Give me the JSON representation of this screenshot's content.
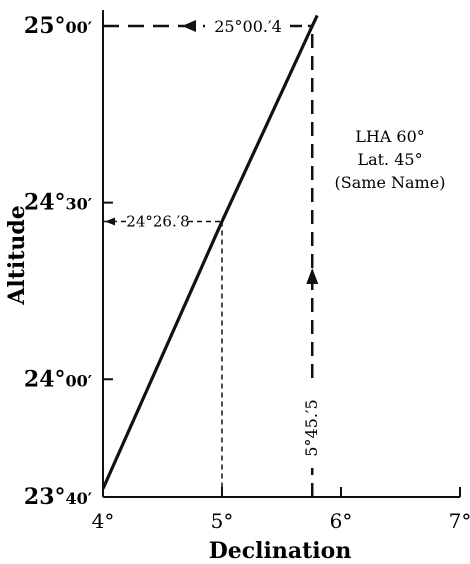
{
  "chart_data": {
    "type": "line",
    "xlabel": "Declination",
    "ylabel": "Altitude",
    "xlim": [
      4,
      7
    ],
    "ylim": [
      23.6667,
      25.0
    ],
    "x_ticks": [
      {
        "value": 4,
        "label": "4°"
      },
      {
        "value": 5,
        "label": "5°"
      },
      {
        "value": 6,
        "label": "6°"
      },
      {
        "value": 7,
        "label": "7°"
      }
    ],
    "y_ticks": [
      {
        "value": 25.0,
        "deg": "25°",
        "min": "00′"
      },
      {
        "value": 24.5,
        "deg": "24°",
        "min": "30′"
      },
      {
        "value": 24.0,
        "deg": "24°",
        "min": "00′"
      },
      {
        "value": 23.6667,
        "deg": "23°",
        "min": "40′"
      }
    ],
    "series": [
      {
        "x": [
          4.0,
          5.0,
          5.7583,
          5.8
        ],
        "y": [
          23.69,
          24.4467,
          25.0,
          25.03
        ]
      }
    ],
    "annotations": {
      "box_lines": [
        "LHA 60°",
        "Lat. 45°",
        "(Same Name)"
      ],
      "top_readout": {
        "label": "25°00.′4",
        "x": 5.7583,
        "y": 25.0
      },
      "mid_readout": {
        "label": "24°26.′8",
        "x": 5.0,
        "y": 24.4467
      },
      "vertical_label": {
        "label": "5°45.′5",
        "x": 5.7583
      }
    },
    "grid": false,
    "legend": "none"
  }
}
